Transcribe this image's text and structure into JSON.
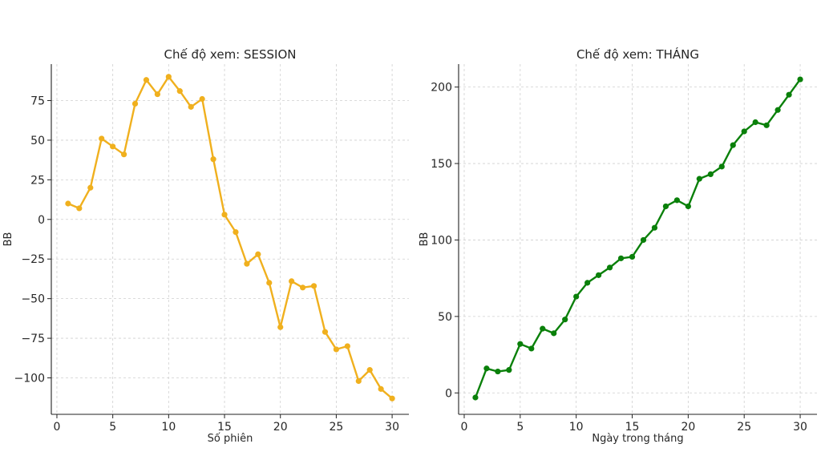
{
  "chart_data": [
    {
      "type": "line",
      "title": "Chế độ xem: SESSION",
      "xlabel": "Số phiên",
      "ylabel": "BB",
      "color": "#f0b01e",
      "xlim": [
        -0.5,
        31.5
      ],
      "ylim": [
        -123,
        98
      ],
      "xticks": [
        0,
        5,
        10,
        15,
        20,
        25,
        30
      ],
      "yticks": [
        -100,
        -75,
        -50,
        -25,
        0,
        25,
        50,
        75
      ],
      "ytick_labels": [
        "−100",
        "−75",
        "−50",
        "−25",
        "0",
        "25",
        "50",
        "75"
      ],
      "grid": true,
      "x": [
        1,
        2,
        3,
        4,
        5,
        6,
        7,
        8,
        9,
        10,
        11,
        12,
        13,
        14,
        15,
        16,
        17,
        18,
        19,
        20,
        21,
        22,
        23,
        24,
        25,
        26,
        27,
        28,
        29,
        30
      ],
      "y": [
        10,
        7,
        20,
        51,
        46,
        41,
        73,
        88,
        79,
        90,
        81,
        71,
        76,
        38,
        3,
        -8,
        -28,
        -22,
        -40,
        -68,
        -39,
        -43,
        -42,
        -71,
        -82,
        -80,
        -102,
        -95,
        -107,
        -113
      ]
    },
    {
      "type": "line",
      "title": "Chế độ xem: THÁNG",
      "xlabel": "Ngày trong tháng",
      "ylabel": "BB",
      "color": "#0a800a",
      "xlim": [
        -0.5,
        31.5
      ],
      "ylim": [
        -14,
        215
      ],
      "xticks": [
        0,
        5,
        10,
        15,
        20,
        25,
        30
      ],
      "yticks": [
        0,
        50,
        100,
        150,
        200
      ],
      "ytick_labels": [
        "0",
        "50",
        "100",
        "150",
        "200"
      ],
      "grid": true,
      "x": [
        1,
        2,
        3,
        4,
        5,
        6,
        7,
        8,
        9,
        10,
        11,
        12,
        13,
        14,
        15,
        16,
        17,
        18,
        19,
        20,
        21,
        22,
        23,
        24,
        25,
        26,
        27,
        28,
        29,
        30
      ],
      "y": [
        -3,
        16,
        14,
        15,
        32,
        29,
        42,
        39,
        48,
        63,
        72,
        77,
        82,
        88,
        89,
        100,
        108,
        122,
        126,
        122,
        140,
        143,
        148,
        162,
        171,
        177,
        175,
        185,
        195,
        205
      ]
    }
  ]
}
